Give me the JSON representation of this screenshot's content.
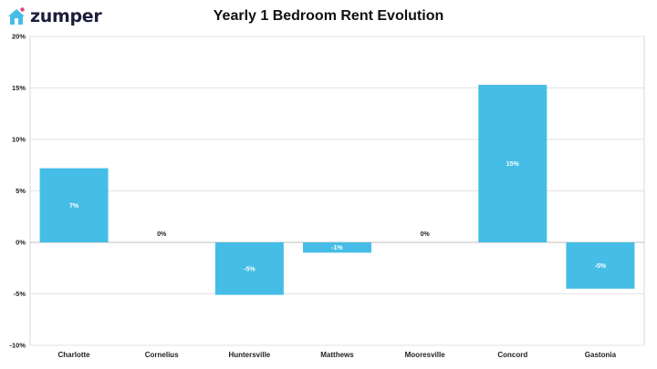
{
  "header": {
    "brand": "zumper",
    "title": "Yearly 1 Bedroom Rent Evolution"
  },
  "colors": {
    "bar": "#45bde6",
    "brand_icon": "#45bde6",
    "brand_dot": "#e6417a"
  },
  "chart_data": {
    "type": "bar",
    "title": "Yearly 1 Bedroom Rent Evolution",
    "xlabel": "",
    "ylabel": "",
    "categories": [
      "Charlotte",
      "Cornelius",
      "Huntersville",
      "Matthews",
      "Mooresville",
      "Concord",
      "Gastonia"
    ],
    "values": [
      7.2,
      0,
      -5.1,
      -1.0,
      0,
      15.3,
      -4.5
    ],
    "data_labels": [
      "7%",
      "0%",
      "-5%",
      "-1%",
      "0%",
      "15%",
      "-5%"
    ],
    "ylim": [
      -10,
      20
    ],
    "yticks": [
      -10,
      -5,
      0,
      5,
      10,
      15,
      20
    ],
    "ytick_labels": [
      "-10%",
      "-5%",
      "0%",
      "5%",
      "10%",
      "15%",
      "20%"
    ],
    "grid": true,
    "legend": "none"
  }
}
